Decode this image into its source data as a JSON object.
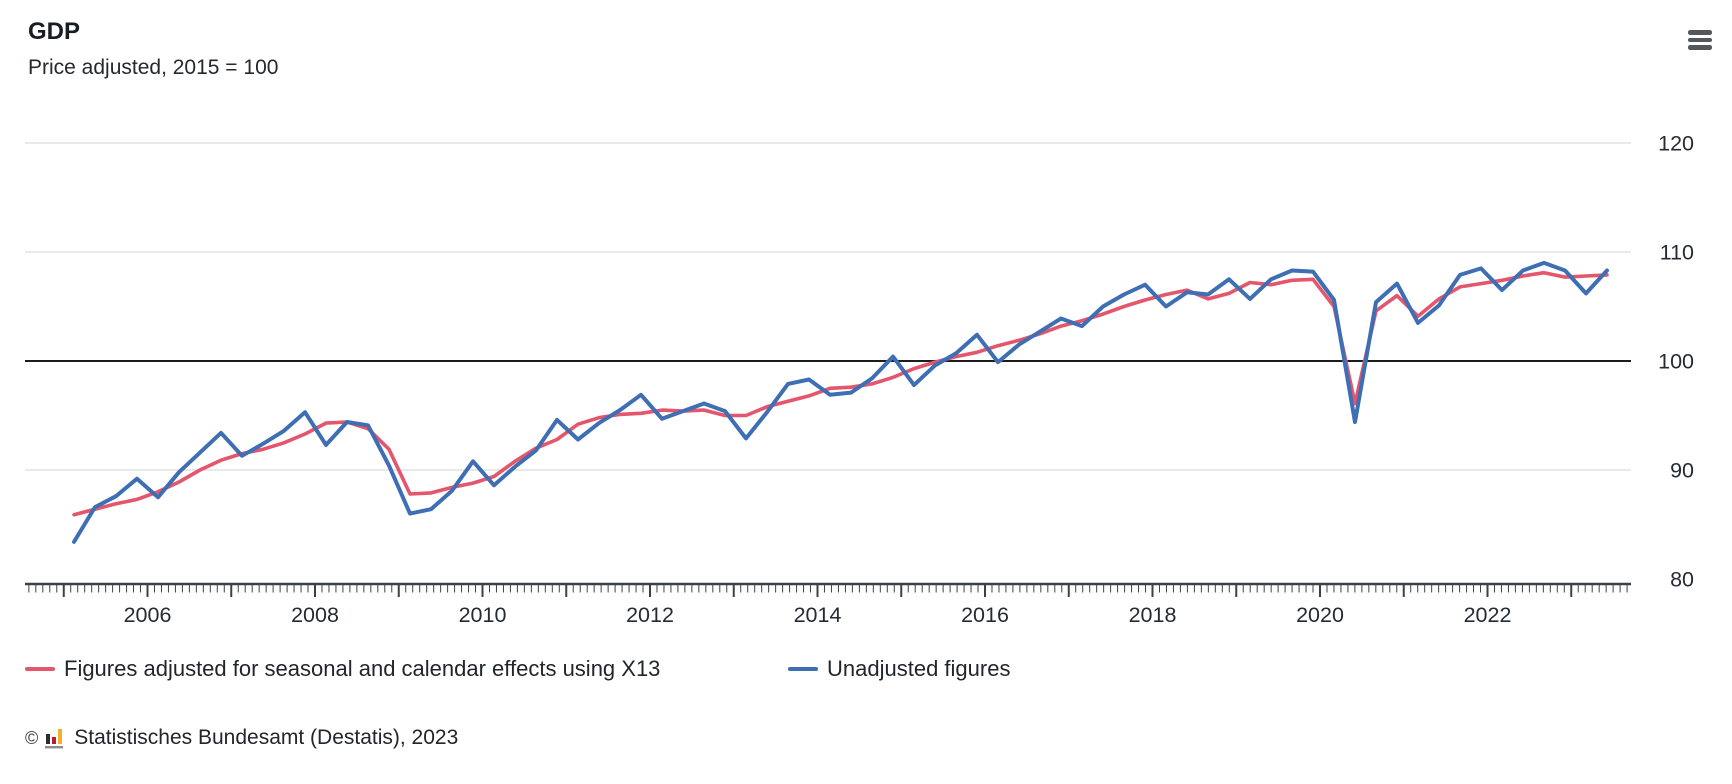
{
  "header": {
    "title": "GDP",
    "subtitle": "Price adjusted, 2015 = 100"
  },
  "menu": {
    "icon": "hamburger-menu-icon"
  },
  "chart_data": {
    "type": "line",
    "x_axis": {
      "first_point": "2005-Q1",
      "last_point": "2023-Q2",
      "interval": "quarterly",
      "labeled_years": [
        2006,
        2008,
        2010,
        2012,
        2014,
        2016,
        2018,
        2020,
        2022
      ],
      "tick_years_start": 2005,
      "tick_years_end": 2023,
      "minor_ticks": "monthly"
    },
    "ylim": [
      80,
      122
    ],
    "yticks": [
      80,
      90,
      100,
      110,
      120
    ],
    "baseline": 100,
    "grid": true,
    "legend_position": "bottom",
    "colors": {
      "grid": "#dcdcdc",
      "baseline": "#1c1c1c",
      "axis": "#3c4149",
      "text": "#262b33"
    },
    "series": [
      {
        "name": "Figures adjusted for seasonal and calendar effects using X13",
        "color": "#e3566c",
        "values": [
          85.9,
          86.4,
          86.9,
          87.3,
          88.0,
          88.9,
          90.0,
          90.9,
          91.5,
          91.9,
          92.5,
          93.3,
          94.3,
          94.4,
          93.8,
          91.9,
          87.8,
          87.9,
          88.4,
          88.8,
          89.4,
          90.8,
          92.0,
          92.8,
          94.2,
          94.8,
          95.1,
          95.2,
          95.5,
          95.4,
          95.5,
          95.0,
          95.0,
          95.8,
          96.3,
          96.8,
          97.5,
          97.6,
          97.9,
          98.5,
          99.3,
          99.9,
          100.4,
          100.8,
          101.4,
          101.9,
          102.5,
          103.2,
          103.7,
          104.3,
          105.0,
          105.6,
          106.1,
          106.5,
          105.7,
          106.2,
          107.2,
          107.0,
          107.4,
          107.5,
          105.0,
          96.1,
          104.6,
          106.0,
          104.1,
          105.7,
          106.8,
          107.1,
          107.4,
          107.8,
          108.1,
          107.7,
          107.8,
          107.9
        ]
      },
      {
        "name": "Unadjusted figures",
        "color": "#3e6eb4",
        "values": [
          83.4,
          86.6,
          87.6,
          89.2,
          87.5,
          89.8,
          91.6,
          93.4,
          91.3,
          92.4,
          93.6,
          95.3,
          92.3,
          94.4,
          94.1,
          90.4,
          86.0,
          86.4,
          88.1,
          90.8,
          88.6,
          90.3,
          91.8,
          94.6,
          92.8,
          94.3,
          95.5,
          96.9,
          94.7,
          95.4,
          96.1,
          95.4,
          92.9,
          95.3,
          97.9,
          98.3,
          96.9,
          97.1,
          98.4,
          100.4,
          97.8,
          99.6,
          100.7,
          102.4,
          99.9,
          101.5,
          102.7,
          103.9,
          103.2,
          105.0,
          106.1,
          107.0,
          105.0,
          106.3,
          106.1,
          107.5,
          105.7,
          107.5,
          108.3,
          108.2,
          105.6,
          94.4,
          105.4,
          107.1,
          103.5,
          105.1,
          107.9,
          108.5,
          106.5,
          108.3,
          109.0,
          108.3,
          106.2,
          108.3
        ]
      }
    ]
  },
  "footer": {
    "copyright": "©",
    "logo": "destatis-bar-chart-logo",
    "source": "Statistisches Bundesamt (Destatis), 2023"
  }
}
